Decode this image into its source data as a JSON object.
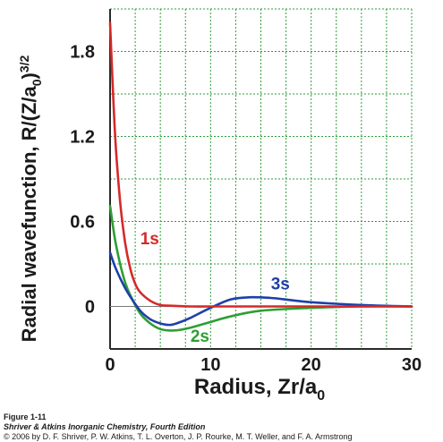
{
  "chart_data": {
    "type": "line",
    "xlabel": "Radius, Zr/a",
    "xlabel_sub": "0",
    "ylabel": "Radial wavefunction, R/(Z/a",
    "ylabel_sub": "0",
    "ylabel_tail": ")",
    "ylabel_sup": "3/2",
    "xlim": [
      0,
      30
    ],
    "ylim": [
      -0.3,
      2.1
    ],
    "x_ticks": [
      0,
      10,
      20,
      30
    ],
    "x_tick_labels": [
      "0",
      "10",
      "20",
      "30"
    ],
    "y_ticks": [
      0,
      0.6,
      1.2,
      1.8
    ],
    "y_tick_labels": [
      "0",
      "0.6",
      "1.2",
      "1.8"
    ],
    "grid": true,
    "grid_color": "#2e9e3a",
    "series": [
      {
        "name": "1s",
        "color": "#d42a2a",
        "x": [
          0,
          0.5,
          1,
          1.5,
          2,
          2.5,
          3,
          4,
          5,
          6,
          8,
          10,
          15,
          20,
          30
        ],
        "y": [
          2.0,
          1.21,
          0.74,
          0.45,
          0.27,
          0.16,
          0.1,
          0.04,
          0.01,
          0.005,
          0.0,
          0.0,
          0.0,
          0.0,
          0.0
        ]
      },
      {
        "name": "2s",
        "color": "#2f9e33",
        "x": [
          0,
          0.5,
          1,
          1.5,
          2,
          3,
          4,
          5,
          6,
          7,
          8,
          10,
          12,
          15,
          20,
          25,
          30
        ],
        "y": [
          0.71,
          0.47,
          0.3,
          0.17,
          0.08,
          -0.05,
          -0.12,
          -0.16,
          -0.17,
          -0.165,
          -0.15,
          -0.11,
          -0.07,
          -0.03,
          -0.01,
          0.0,
          0.0
        ]
      },
      {
        "name": "3s",
        "color": "#1f3fa8",
        "x": [
          0,
          0.5,
          1,
          1.5,
          2,
          3,
          4,
          5,
          6,
          7,
          8,
          10,
          12,
          14,
          16,
          18,
          20,
          25,
          30
        ],
        "y": [
          0.38,
          0.28,
          0.2,
          0.13,
          0.07,
          -0.03,
          -0.09,
          -0.12,
          -0.13,
          -0.11,
          -0.08,
          -0.01,
          0.05,
          0.065,
          0.06,
          0.045,
          0.03,
          0.01,
          0.0
        ]
      }
    ]
  },
  "caption": {
    "figure": "Figure 1-11",
    "title": "Shriver & Atkins Inorganic Chemistry, Fourth Edition",
    "copyright": "© 2006 by D. F. Shriver, P. W. Atkins, T. L. Overton, J. P. Rourke, M. T. Weller, and F. A. Armstrong"
  }
}
